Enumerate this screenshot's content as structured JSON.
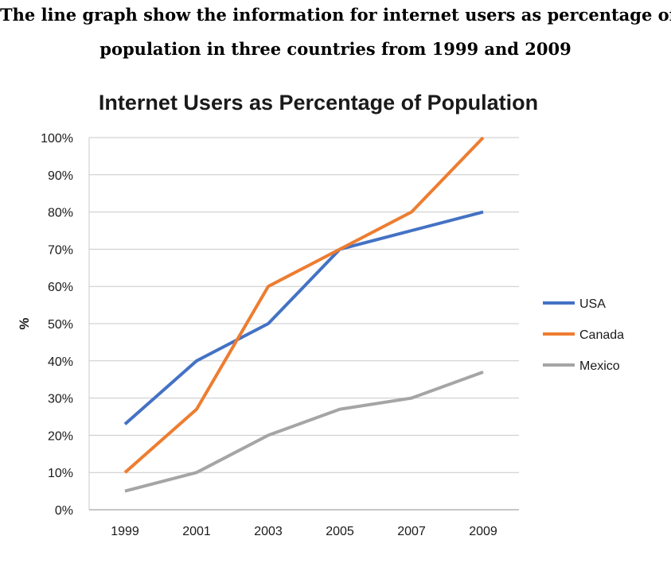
{
  "caption": {
    "line1": "The line graph show the information for internet users as percentage of",
    "line2": "population in three countries from 1999 and 2009"
  },
  "chart_data": {
    "type": "line",
    "title": "Internet Users as Percentage of Population",
    "xlabel": "",
    "ylabel": "%",
    "categories": [
      "1999",
      "2001",
      "2003",
      "2005",
      "2007",
      "2009"
    ],
    "ylim": [
      0,
      100
    ],
    "yticks": [
      0,
      10,
      20,
      30,
      40,
      50,
      60,
      70,
      80,
      90,
      100
    ],
    "ytick_labels": [
      "0%",
      "10%",
      "20%",
      "30%",
      "40%",
      "50%",
      "60%",
      "70%",
      "80%",
      "90%",
      "100%"
    ],
    "grid": true,
    "legend": "right",
    "series": [
      {
        "name": "USA",
        "color": "#4472c4",
        "values": [
          23,
          40,
          50,
          70,
          75,
          80
        ]
      },
      {
        "name": "Canada",
        "color": "#ed7d31",
        "values": [
          10,
          27,
          60,
          70,
          80,
          100
        ]
      },
      {
        "name": "Mexico",
        "color": "#a5a5a5",
        "values": [
          5,
          10,
          20,
          27,
          30,
          37
        ]
      }
    ]
  }
}
